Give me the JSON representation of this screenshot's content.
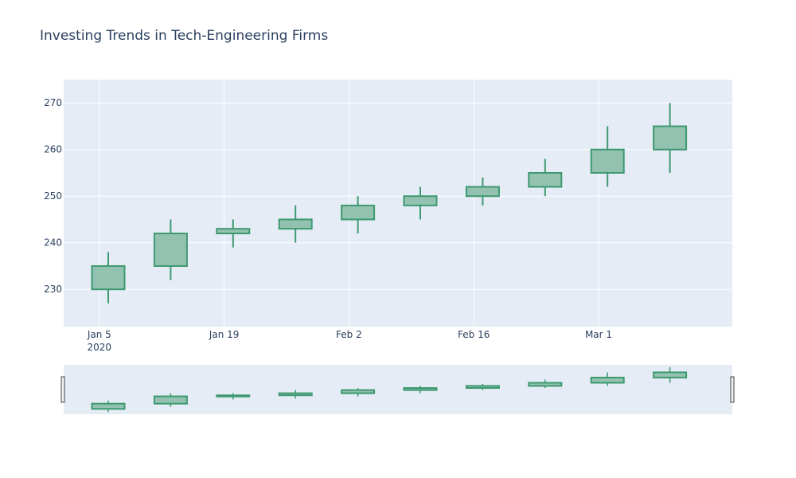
{
  "chart_data": {
    "type": "candlestick",
    "title": "Investing Trends in Tech-Engineering Firms",
    "xlabel": "",
    "ylabel": "",
    "ylim": [
      222,
      275
    ],
    "x_range": [
      "2020-01-01",
      "2020-03-16"
    ],
    "x_tick_labels": [
      {
        "date": "2020-01-05",
        "label": "Jan 5",
        "sub_label": "2020"
      },
      {
        "date": "2020-01-19",
        "label": "Jan 19",
        "sub_label": ""
      },
      {
        "date": "2020-02-02",
        "label": "Feb 2",
        "sub_label": ""
      },
      {
        "date": "2020-02-16",
        "label": "Feb 16",
        "sub_label": ""
      },
      {
        "date": "2020-03-01",
        "label": "Mar 1",
        "sub_label": ""
      }
    ],
    "y_ticks": [
      230,
      240,
      250,
      260,
      270
    ],
    "grid": true,
    "rangeslider": true,
    "series": [
      {
        "candles": [
          {
            "date": "2020-01-06",
            "open": 230,
            "high": 238,
            "low": 227,
            "close": 235
          },
          {
            "date": "2020-01-13",
            "open": 235,
            "high": 245,
            "low": 232,
            "close": 242
          },
          {
            "date": "2020-01-20",
            "open": 242,
            "high": 245,
            "low": 239,
            "close": 243
          },
          {
            "date": "2020-01-27",
            "open": 243,
            "high": 248,
            "low": 240,
            "close": 245
          },
          {
            "date": "2020-02-03",
            "open": 245,
            "high": 250,
            "low": 242,
            "close": 248
          },
          {
            "date": "2020-02-10",
            "open": 248,
            "high": 252,
            "low": 245,
            "close": 250
          },
          {
            "date": "2020-02-17",
            "open": 250,
            "high": 254,
            "low": 248,
            "close": 252
          },
          {
            "date": "2020-02-24",
            "open": 252,
            "high": 258,
            "low": 250,
            "close": 255
          },
          {
            "date": "2020-03-02",
            "open": 255,
            "high": 265,
            "low": 252,
            "close": 260
          },
          {
            "date": "2020-03-09",
            "open": 260,
            "high": 270,
            "low": 255,
            "close": 265
          }
        ]
      }
    ],
    "colors": {
      "increasing_line": "#3d9970",
      "increasing_fill": "#93c2b1",
      "plot_bg": "#e5ecf6",
      "grid": "#ffffff",
      "text": "#2a3f5f"
    }
  }
}
